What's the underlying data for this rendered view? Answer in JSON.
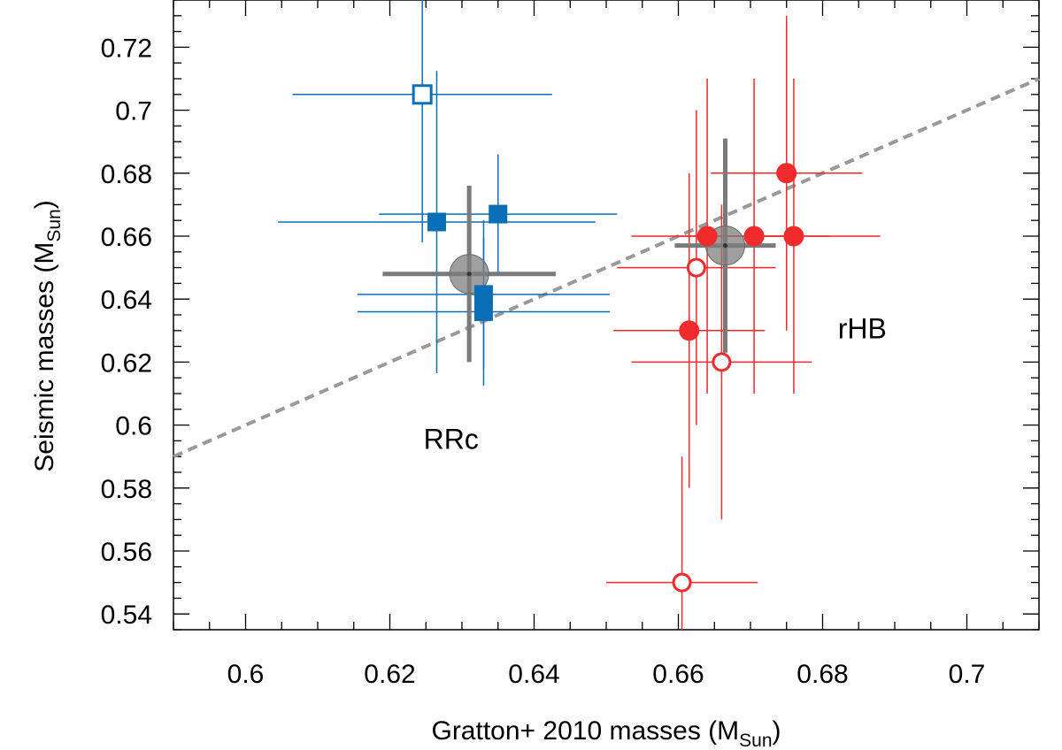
{
  "chart_data": {
    "type": "scatter",
    "xlabel": {
      "text": "Gratton+ 2010 masses (M",
      "sub": "Sun",
      "close": ")"
    },
    "ylabel": {
      "text": "Seismic masses (M",
      "sub": "Sun",
      "close": ")"
    },
    "xlim": [
      0.59,
      0.71
    ],
    "ylim": [
      0.535,
      0.735
    ],
    "x_ticks": [
      "0.6",
      "0.62",
      "0.64",
      "0.66",
      "0.68",
      "0.7"
    ],
    "y_ticks": [
      "0.54",
      "0.56",
      "0.58",
      "0.6",
      "0.62",
      "0.64",
      "0.66",
      "0.68",
      "0.7",
      "0.72"
    ],
    "grid": false,
    "colors": {
      "rrc": "#0a6fb5",
      "rhb": "#ef2b2b",
      "mean": "#808080",
      "line": "#999999"
    },
    "reference_line": {
      "style": "dashed",
      "points": [
        [
          0.59,
          0.59
        ],
        [
          0.71,
          0.71
        ]
      ]
    },
    "annotations": [
      {
        "text": "RRc",
        "x": 0.6285,
        "y": 0.5925
      },
      {
        "text": "rHB",
        "x": 0.6855,
        "y": 0.6275
      }
    ],
    "series": [
      {
        "group": "RRc",
        "marker": "square",
        "points": [
          {
            "x": 0.6245,
            "y": 0.705,
            "xerr": 0.018,
            "yerr": 0.047,
            "filled": false
          },
          {
            "x": 0.6265,
            "y": 0.6645,
            "xerr": 0.022,
            "yerr": 0.048,
            "filled": true
          },
          {
            "x": 0.635,
            "y": 0.667,
            "xerr": 0.0165,
            "yerr": 0.019,
            "filled": true
          },
          {
            "x": 0.633,
            "y": 0.6415,
            "xerr": 0.0175,
            "yerr": 0.0235,
            "filled": true
          },
          {
            "x": 0.633,
            "y": 0.636,
            "xerr": 0.0175,
            "yerr": 0.0235,
            "filled": true
          }
        ]
      },
      {
        "group": "rHB",
        "marker": "circle",
        "points": [
          {
            "x": 0.675,
            "y": 0.68,
            "xerr": 0.0105,
            "yerr": 0.05,
            "filled": true
          },
          {
            "x": 0.664,
            "y": 0.66,
            "xerr": 0.0105,
            "yerr": 0.05,
            "filled": true
          },
          {
            "x": 0.6705,
            "y": 0.66,
            "xerr": 0.0105,
            "yerr": 0.05,
            "filled": true
          },
          {
            "x": 0.676,
            "y": 0.66,
            "xerr": 0.012,
            "yerr": 0.05,
            "filled": true
          },
          {
            "x": 0.6615,
            "y": 0.63,
            "xerr": 0.0105,
            "yerr": 0.05,
            "filled": true
          },
          {
            "x": 0.6625,
            "y": 0.65,
            "xerr": 0.011,
            "yerr": 0.05,
            "filled": false
          },
          {
            "x": 0.666,
            "y": 0.62,
            "xerr": 0.0125,
            "yerr": 0.05,
            "filled": false
          },
          {
            "x": 0.6605,
            "y": 0.55,
            "xerr": 0.0105,
            "yerr": 0.04,
            "filled": false
          }
        ]
      },
      {
        "group": "mean",
        "marker": "big-circle",
        "points": [
          {
            "x": 0.631,
            "y": 0.648,
            "xerr": 0.012,
            "yerr": 0.028
          },
          {
            "x": 0.6665,
            "y": 0.657,
            "xerr": 0.007,
            "yerr": 0.034
          }
        ]
      }
    ]
  }
}
